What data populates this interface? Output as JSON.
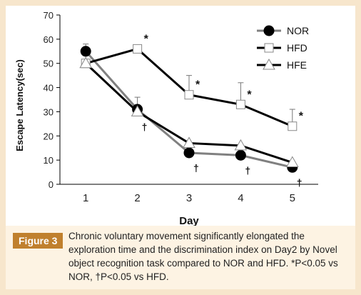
{
  "figure": {
    "label": "Figure 3",
    "caption": "Chronic voluntary movement significantly elongated the exploration time and the discrimination index on Day2 by Novel object recognition task compared to NOR and HFD. *P<0.05 vs NOR, †P<0.05 vs HFD."
  },
  "chart_data": {
    "type": "line",
    "xlabel": "Day",
    "ylabel": "Escape Latency(sec)",
    "x": [
      1,
      2,
      3,
      4,
      5
    ],
    "xlim": [
      0.5,
      5.5
    ],
    "ylim": [
      0,
      70
    ],
    "yticks": [
      0,
      10,
      20,
      30,
      40,
      50,
      60,
      70
    ],
    "grid": false,
    "legend_position": "top-right",
    "series": [
      {
        "name": "NOR",
        "marker": "circle",
        "line_color": "#808080",
        "marker_color": "#000000",
        "values": [
          55,
          31,
          13,
          12,
          7
        ],
        "errors": [
          3,
          5,
          0,
          0,
          0
        ]
      },
      {
        "name": "HFD",
        "marker": "square",
        "line_color": "#000000",
        "marker_color": "#ffffff",
        "values": [
          50,
          56,
          37,
          33,
          24
        ],
        "errors": [
          0,
          0,
          8,
          9,
          7
        ]
      },
      {
        "name": "HFE",
        "marker": "triangle",
        "line_color": "#000000",
        "marker_color": "#ffffff",
        "values": [
          50,
          30,
          17,
          16,
          9
        ],
        "errors": [
          5,
          0,
          0,
          0,
          0
        ]
      }
    ],
    "annotations": [
      {
        "x": 2,
        "y": 56,
        "text": "*"
      },
      {
        "x": 3,
        "y": 37,
        "text": "*"
      },
      {
        "x": 4,
        "y": 33,
        "text": "*"
      },
      {
        "x": 5,
        "y": 24,
        "text": "*"
      },
      {
        "x": 2,
        "y": 30,
        "text": "†"
      },
      {
        "x": 3,
        "y": 13,
        "text": "†"
      },
      {
        "x": 4,
        "y": 12,
        "text": "†"
      },
      {
        "x": 5,
        "y": 7,
        "text": "†"
      }
    ]
  }
}
